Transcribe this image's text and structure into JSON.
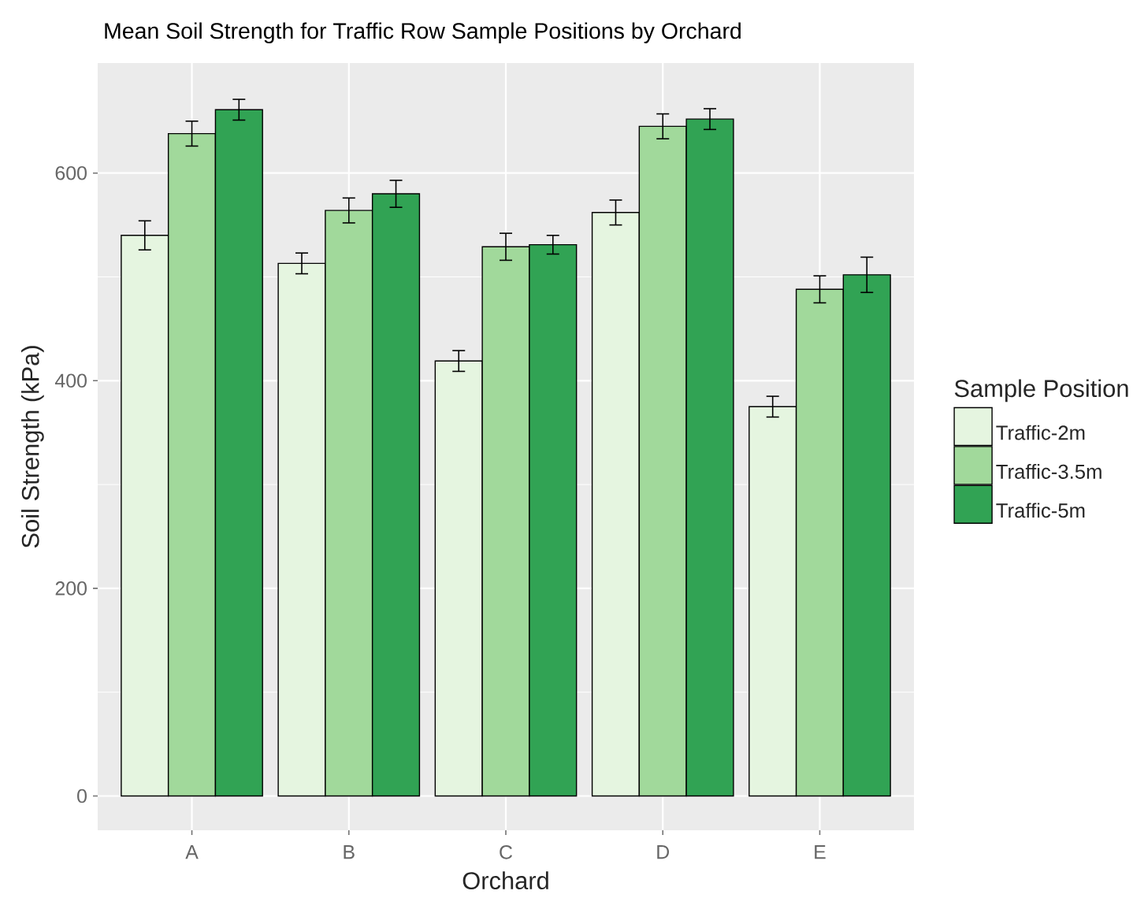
{
  "chart_data": {
    "type": "bar",
    "title": "Mean Soil Strength for Traffic Row Sample Positions by Orchard",
    "xlabel": "Orchard",
    "ylabel": "Soil Strength (kPa)",
    "legend_title": "Sample Position",
    "categories": [
      "A",
      "B",
      "C",
      "D",
      "E"
    ],
    "series": [
      {
        "name": "Traffic-2m",
        "color": "#e5f5e0",
        "values": [
          540,
          513,
          419,
          562,
          375
        ],
        "errors": [
          14,
          10,
          10,
          12,
          10
        ]
      },
      {
        "name": "Traffic-3.5m",
        "color": "#a1d99b",
        "values": [
          638,
          564,
          529,
          645,
          488
        ],
        "errors": [
          12,
          12,
          13,
          12,
          13
        ]
      },
      {
        "name": "Traffic-5m",
        "color": "#31a354",
        "values": [
          661,
          580,
          531,
          652,
          502
        ],
        "errors": [
          10,
          13,
          9,
          10,
          17
        ]
      }
    ],
    "ylim": [
      -33,
      706
    ],
    "yticks": [
      0,
      200,
      400,
      600
    ],
    "grid": true,
    "legend": "right"
  }
}
